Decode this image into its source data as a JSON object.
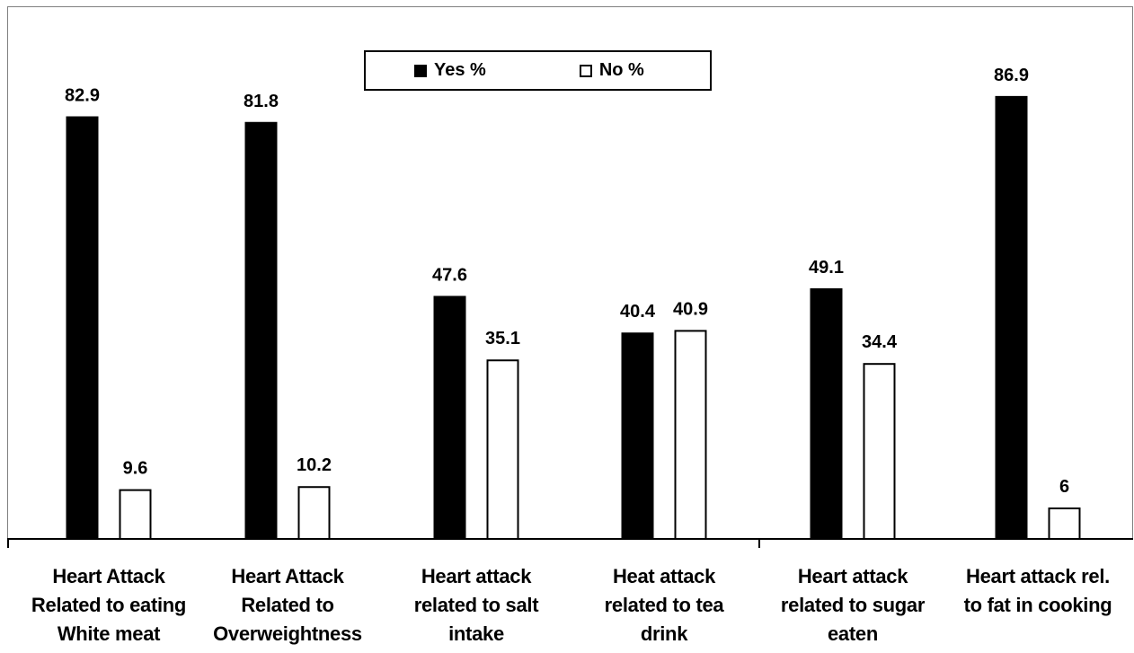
{
  "chart_data": {
    "type": "bar",
    "categories": [
      "Heart Attack\nRelated to eating\nWhite meat",
      "Heart Attack\nRelated to\nOverweightness",
      "Heart attack\nrelated to salt\nintake",
      "Heat attack\nrelated to tea\ndrink",
      "Heart attack\nrelated to sugar\neaten",
      "Heart attack rel.\nto fat in cooking"
    ],
    "series": [
      {
        "name": "Yes %",
        "values": [
          82.9,
          81.8,
          47.6,
          40.4,
          49.1,
          86.9
        ],
        "labels": [
          "82.9",
          "81.8",
          "47.6",
          "40.4",
          "49.1",
          "86.9"
        ],
        "color": "#000000"
      },
      {
        "name": "No %",
        "values": [
          9.6,
          10.2,
          35.1,
          40.9,
          34.4,
          6
        ],
        "labels": [
          "9.6",
          "10.2",
          "35.1",
          "40.9",
          "34.4",
          "6"
        ],
        "color": "#ffffff"
      }
    ],
    "ylim": [
      0,
      100
    ],
    "grid": false,
    "legend": "top-center",
    "title": "",
    "xlabel": "",
    "ylabel": ""
  }
}
